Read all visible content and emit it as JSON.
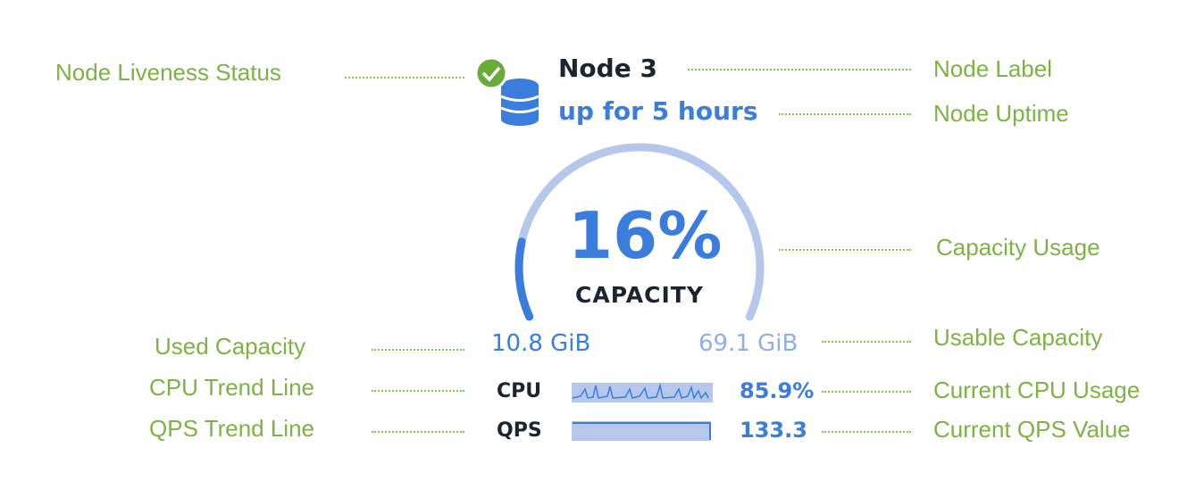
{
  "node": {
    "label": "Node 3",
    "uptime": "up for 5 hours",
    "liveness_icon": "check-circle-icon",
    "node_icon": "database-icon",
    "capacity_percent_text": "16%",
    "capacity_percent": 16,
    "capacity_label": "CAPACITY",
    "used_capacity": "10.8 GiB",
    "usable_capacity": "69.1 GiB",
    "cpu_label": "CPU",
    "cpu_value": "85.9%",
    "qps_label": "QPS",
    "qps_value": "133.3"
  },
  "annotations": {
    "liveness": "Node Liveness Status",
    "label": "Node Label",
    "uptime": "Node Uptime",
    "capacity_usage": "Capacity Usage",
    "used_capacity": "Used Capacity",
    "usable_capacity": "Usable Capacity",
    "cpu_trend": "CPU Trend Line",
    "cpu_current": "Current CPU Usage",
    "qps_trend": "QPS Trend Line",
    "qps_current": "Current QPS Value"
  },
  "colors": {
    "annotation": "#7cb342",
    "accent": "#3b7ddd",
    "accent_light": "#b5c8ec",
    "status_ok": "#6aab3a",
    "text_dark": "#1c2331"
  }
}
